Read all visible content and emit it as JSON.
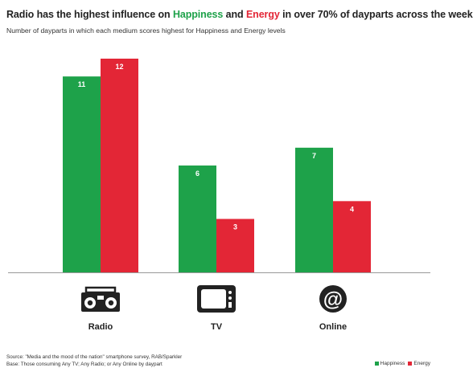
{
  "title": {
    "part1": "Radio has the highest influence on ",
    "happiness": "Happiness",
    "part2": " and ",
    "energy": "Energy",
    "part3": " in over 70% of dayparts across the week"
  },
  "subtitle": "Number of dayparts in which each medium scores highest for Happiness and Energy levels",
  "colors": {
    "happiness": "#1ea24a",
    "energy": "#e32636",
    "axis": "#999999",
    "icon": "#222222"
  },
  "chart_data": {
    "type": "bar",
    "categories": [
      "Radio",
      "TV",
      "Online"
    ],
    "category_icons": [
      "radio-icon",
      "tv-icon",
      "online-at-icon"
    ],
    "series": [
      {
        "name": "Happiness",
        "values": [
          11,
          6,
          7
        ]
      },
      {
        "name": "Energy",
        "values": [
          12,
          3,
          4
        ]
      }
    ],
    "ylim": [
      0,
      12
    ],
    "grid": false,
    "legend_position": "bottom-right"
  },
  "source_lines": [
    "Source:  \"Media and the mood of the nation\" smartphone survey, RAB/Sparkler",
    "Base: Those consuming Any TV; Any Radio; or Any Online by daypart"
  ],
  "legend": {
    "happiness": "Happiness",
    "energy": "Energy"
  }
}
